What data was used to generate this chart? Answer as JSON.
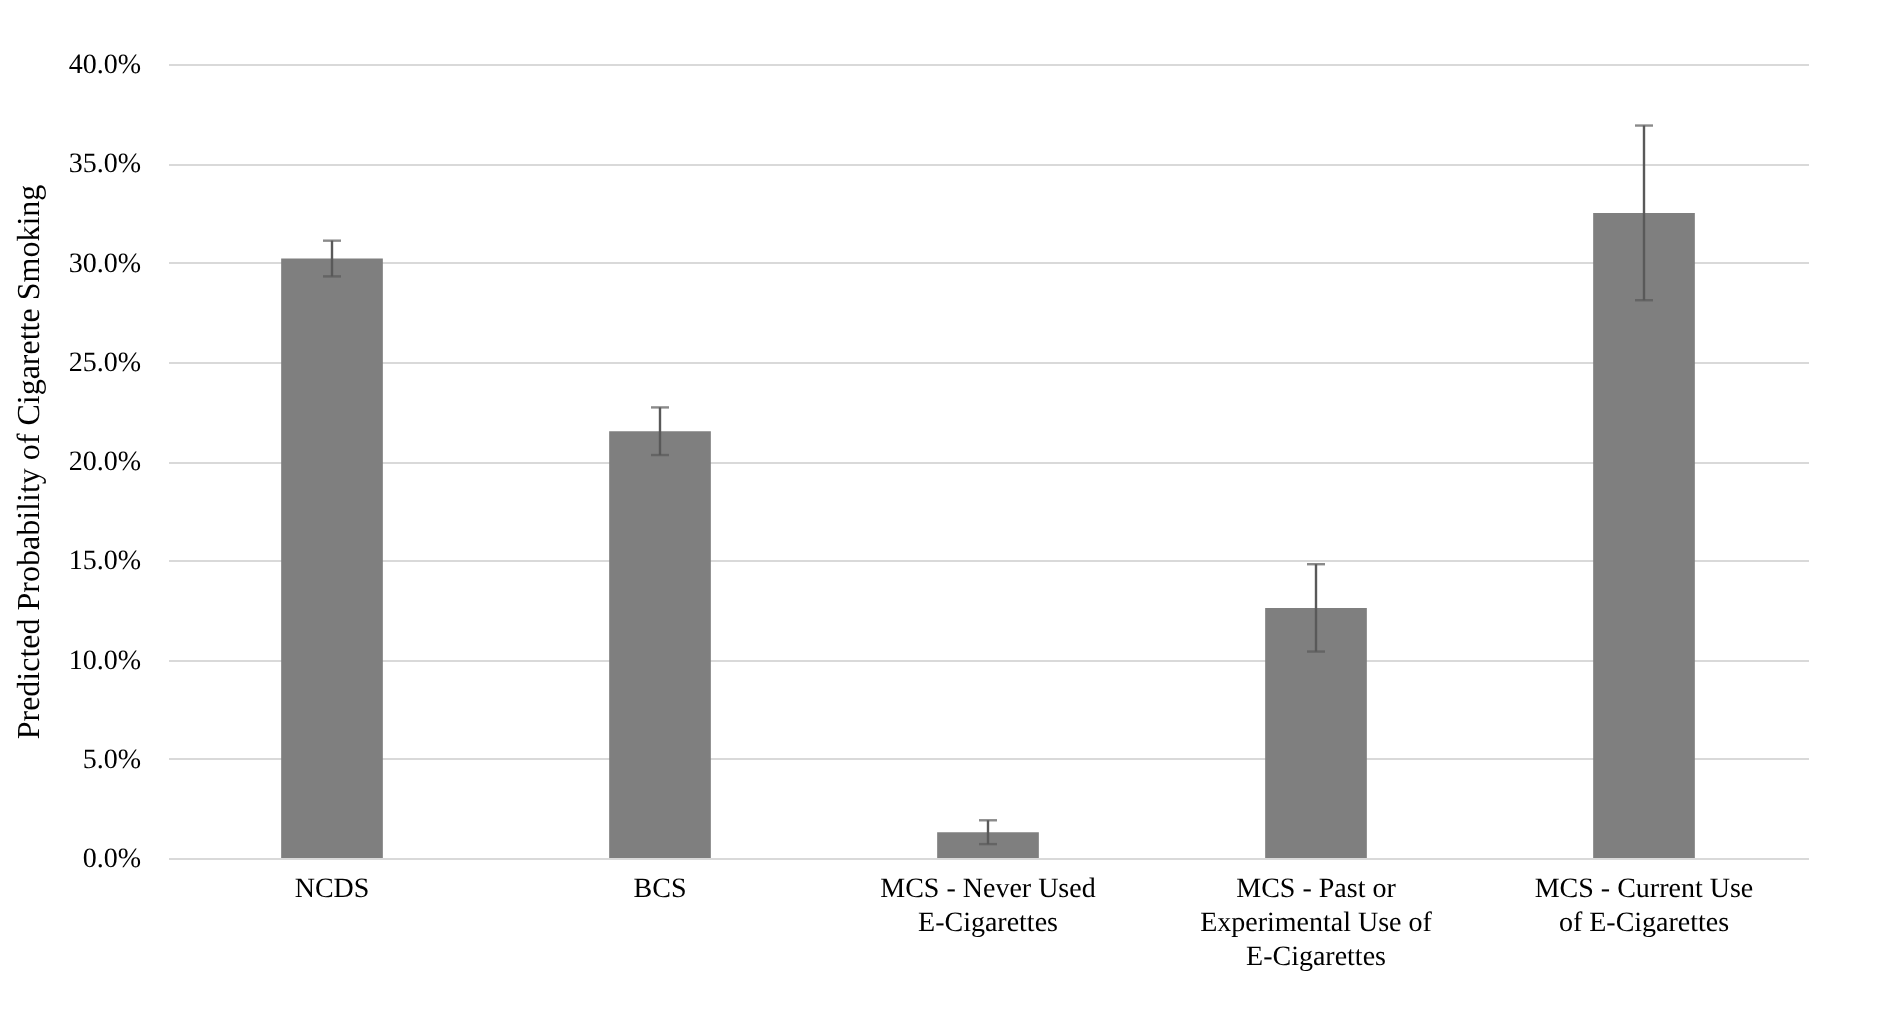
{
  "chart_data": {
    "type": "bar",
    "ylabel": "Predicted Probability of Cigarette Smoking",
    "categories": [
      "NCDS",
      "BCS",
      "MCS - Never Used E-Cigarettes",
      "MCS - Past or Experimental Use of E-Cigarettes",
      "MCS - Current Use of E-Cigarettes"
    ],
    "values": [
      30.2,
      21.5,
      1.3,
      12.6,
      32.5
    ],
    "errors": [
      0.9,
      1.2,
      0.6,
      2.2,
      4.4
    ],
    "color": "#7f7f7f",
    "ylim": [
      0,
      40
    ],
    "yticks": [
      {
        "value": 0,
        "label": "0.0%"
      },
      {
        "value": 5,
        "label": "5.0%"
      },
      {
        "value": 10,
        "label": "10.0%"
      },
      {
        "value": 15,
        "label": "15.0%"
      },
      {
        "value": 20,
        "label": "20.0%"
      },
      {
        "value": 25,
        "label": "25.0%"
      },
      {
        "value": 30,
        "label": "30.0%"
      },
      {
        "value": 35,
        "label": "35.0%"
      },
      {
        "value": 40,
        "label": "40.0%"
      }
    ],
    "grid": "y"
  }
}
